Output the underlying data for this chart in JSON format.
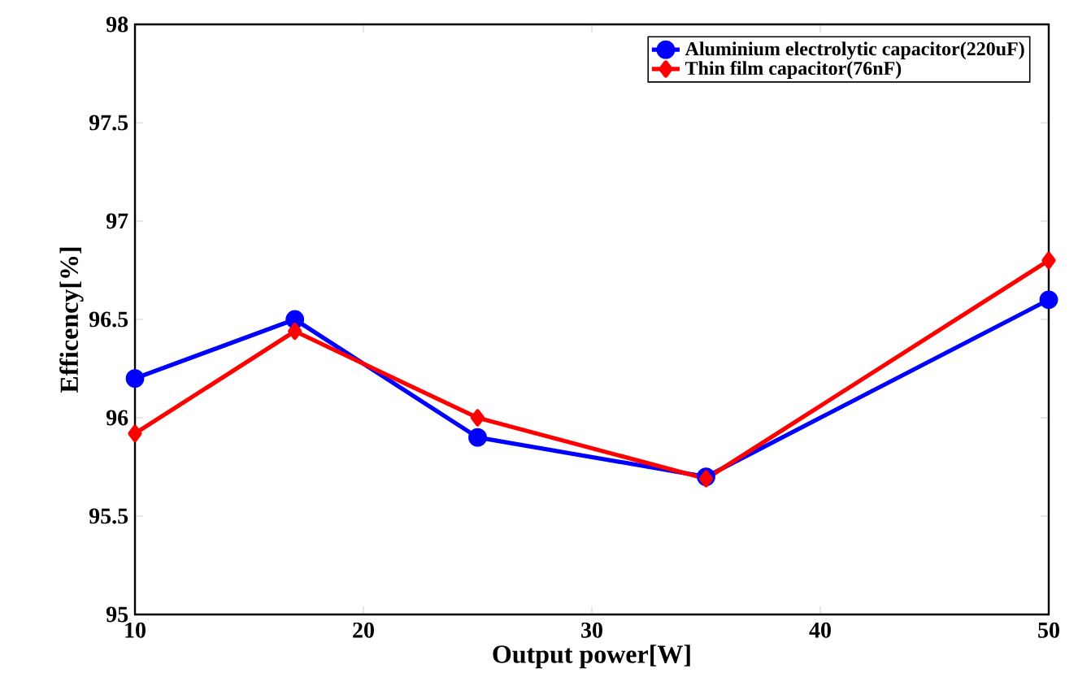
{
  "chart_data": {
    "type": "line",
    "xlabel": "Output power[W]",
    "ylabel": "Efficency[%]",
    "x": [
      10,
      17,
      25,
      35,
      50
    ],
    "series": [
      {
        "name": "Aluminium electrolytic capacitor(220uF)",
        "color": "#0000ff",
        "marker": "circle",
        "values": [
          96.2,
          96.5,
          95.9,
          95.7,
          96.6
        ]
      },
      {
        "name": "Thin film capacitor(76nF)",
        "color": "#ff0000",
        "marker": "diamond",
        "values": [
          95.92,
          96.44,
          96.0,
          95.69,
          96.8
        ]
      }
    ],
    "xlim": [
      10,
      50
    ],
    "xticks": [
      10,
      20,
      30,
      40,
      50
    ],
    "ylim": [
      95,
      98
    ],
    "yticks": [
      95,
      95.5,
      96,
      96.5,
      97,
      97.5,
      98
    ],
    "grid": false,
    "legend": "top right",
    "line_style": "solid"
  }
}
